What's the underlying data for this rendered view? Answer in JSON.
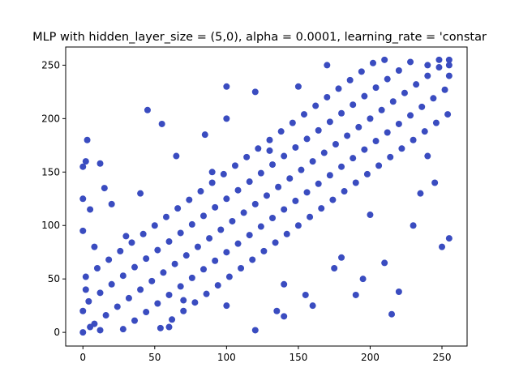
{
  "chart_data": {
    "type": "scatter",
    "title": "MLP with hidden_layer_size = (5,0), alpha = 0.0001, learning_rate = 'constar",
    "color": "#3a4cc0",
    "xlim": [
      -12,
      267.5
    ],
    "ylim": [
      -12.8,
      267
    ],
    "xticks": [
      0,
      50,
      100,
      150,
      200,
      250
    ],
    "yticks": [
      0,
      50,
      100,
      150,
      200,
      250
    ],
    "grid": false,
    "x": [
      0,
      8,
      16,
      24,
      32,
      40,
      48,
      56,
      64,
      72,
      80,
      88,
      96,
      104,
      112,
      120,
      128,
      136,
      144,
      152,
      160,
      168,
      176,
      184,
      192,
      200,
      208,
      216,
      224,
      232,
      240,
      248,
      255,
      4,
      12,
      20,
      28,
      36,
      44,
      52,
      60,
      68,
      76,
      84,
      92,
      100,
      108,
      116,
      124,
      132,
      140,
      148,
      156,
      164,
      172,
      180,
      188,
      196,
      204,
      212,
      220,
      228,
      28,
      36,
      44,
      52,
      60,
      68,
      76,
      84,
      92,
      100,
      108,
      116,
      124,
      132,
      140,
      148,
      156,
      164,
      172,
      180,
      188,
      196,
      204,
      212,
      220,
      228,
      236,
      244,
      252,
      2,
      10,
      18,
      26,
      34,
      42,
      50,
      58,
      66,
      74,
      82,
      90,
      98,
      106,
      114,
      122,
      130,
      138,
      146,
      154,
      162,
      170,
      178,
      186,
      194,
      202,
      54,
      62,
      70,
      78,
      86,
      94,
      102,
      110,
      118,
      126,
      134,
      142,
      150,
      158,
      166,
      174,
      182,
      190,
      198,
      206,
      214,
      222,
      230,
      238,
      246,
      254,
      3,
      45,
      55,
      0,
      2,
      12,
      0,
      15,
      20,
      5,
      0,
      8,
      2,
      0,
      5,
      12,
      120,
      140,
      155,
      160,
      175,
      190,
      210,
      215,
      220,
      230,
      245,
      250,
      255,
      235,
      240,
      100,
      120,
      150,
      170,
      210,
      60,
      100,
      140,
      130,
      100,
      85,
      65,
      40,
      30,
      255,
      255,
      248,
      240,
      180,
      200,
      195,
      135,
      70,
      90
    ],
    "values": [
      0,
      8,
      16,
      24,
      32,
      40,
      48,
      56,
      64,
      72,
      80,
      88,
      96,
      104,
      112,
      120,
      128,
      136,
      144,
      152,
      160,
      168,
      176,
      184,
      192,
      200,
      208,
      216,
      224,
      232,
      240,
      248,
      255,
      29,
      37,
      45,
      53,
      61,
      69,
      77,
      85,
      93,
      101,
      109,
      117,
      125,
      133,
      141,
      149,
      157,
      165,
      173,
      181,
      189,
      197,
      205,
      213,
      221,
      229,
      237,
      245,
      253,
      3,
      11,
      19,
      27,
      35,
      43,
      51,
      59,
      67,
      75,
      83,
      91,
      99,
      107,
      115,
      123,
      131,
      139,
      147,
      155,
      163,
      171,
      179,
      187,
      195,
      203,
      211,
      219,
      227,
      52,
      60,
      68,
      76,
      84,
      92,
      100,
      108,
      116,
      124,
      132,
      140,
      148,
      156,
      164,
      172,
      180,
      188,
      196,
      204,
      212,
      220,
      228,
      236,
      244,
      252,
      4,
      12,
      20,
      28,
      36,
      44,
      52,
      60,
      68,
      76,
      84,
      92,
      100,
      108,
      116,
      124,
      132,
      140,
      148,
      156,
      164,
      172,
      180,
      188,
      196,
      204,
      180,
      208,
      195,
      155,
      160,
      158,
      125,
      135,
      120,
      115,
      95,
      80,
      40,
      20,
      5,
      2,
      2,
      15,
      35,
      25,
      60,
      35,
      65,
      17,
      38,
      100,
      140,
      80,
      88,
      130,
      165,
      230,
      225,
      230,
      250,
      255,
      5,
      25,
      45,
      170,
      200,
      185,
      165,
      130,
      90,
      250,
      240,
      255,
      250,
      70,
      110,
      50,
      20,
      30,
      150
    ]
  }
}
